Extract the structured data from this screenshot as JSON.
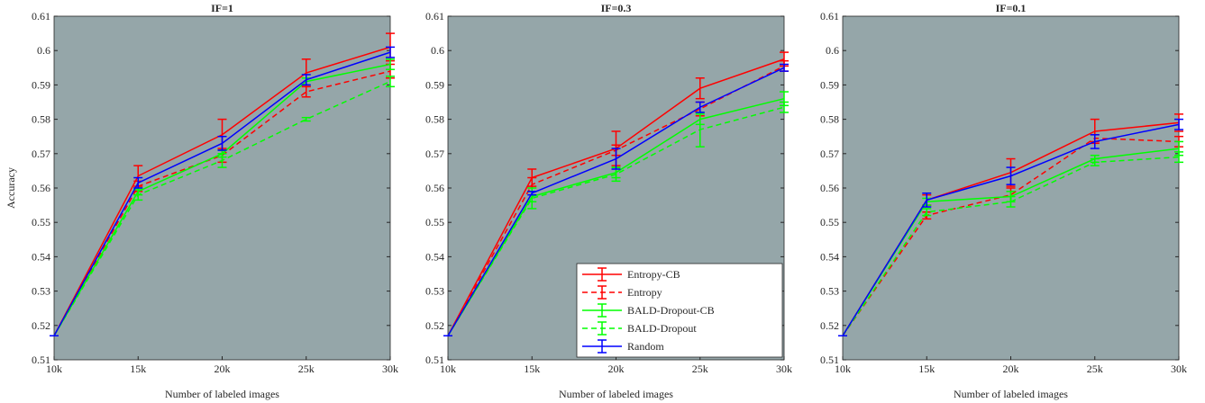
{
  "chart_data": [
    {
      "type": "line",
      "title": "IF=1",
      "xlabel": "Number of labeled images",
      "ylabel": "Accuracy",
      "categories": [
        "10k",
        "15k",
        "20k",
        "25k",
        "30k"
      ],
      "ylim": [
        0.51,
        0.61
      ],
      "yticks": [
        0.51,
        0.52,
        0.53,
        0.54,
        0.55,
        0.56,
        0.57,
        0.58,
        0.59,
        0.6,
        0.61
      ],
      "grid": false,
      "background": "#95a6a9",
      "series": [
        {
          "color": "#ff0000",
          "dash": false,
          "values": [
            0.517,
            0.5635,
            0.5755,
            0.5935,
            0.601
          ],
          "errors": [
            0,
            0.003,
            0.0045,
            0.004,
            0.004
          ]
        },
        {
          "color": "#ff0000",
          "dash": true,
          "values": [
            0.517,
            0.5605,
            0.5695,
            0.588,
            0.594
          ],
          "errors": [
            0,
            0.0015,
            0.002,
            0.0015,
            0.002
          ]
        },
        {
          "color": "#00ff00",
          "dash": false,
          "values": [
            0.517,
            0.559,
            0.57,
            0.591,
            0.596
          ],
          "errors": [
            0,
            0.001,
            0.001,
            0.001,
            0.0015
          ]
        },
        {
          "color": "#00ff00",
          "dash": true,
          "values": [
            0.517,
            0.558,
            0.568,
            0.58,
            0.591
          ],
          "errors": [
            0,
            0.0015,
            0.002,
            0.0005,
            0.0015
          ]
        },
        {
          "color": "#0000ff",
          "dash": false,
          "values": [
            0.517,
            0.5615,
            0.573,
            0.5915,
            0.5995
          ],
          "errors": [
            0,
            0.0015,
            0.002,
            0.0015,
            0.0015
          ]
        }
      ]
    },
    {
      "type": "line",
      "title": "IF=0.3",
      "xlabel": "Number of labeled images",
      "categories": [
        "10k",
        "15k",
        "20k",
        "25k",
        "30k"
      ],
      "ylim": [
        0.51,
        0.61
      ],
      "yticks": [
        0.51,
        0.52,
        0.53,
        0.54,
        0.55,
        0.56,
        0.57,
        0.58,
        0.59,
        0.6,
        0.61
      ],
      "grid": false,
      "background": "#95a6a9",
      "legend": "lower right",
      "series": [
        {
          "name": "Entropy-CB",
          "color": "#ff0000",
          "dash": false,
          "values": [
            0.517,
            0.563,
            0.5715,
            0.589,
            0.5975
          ],
          "errors": [
            0,
            0.0025,
            0.005,
            0.003,
            0.002
          ]
        },
        {
          "name": "Entropy",
          "color": "#ff0000",
          "dash": true,
          "values": [
            0.517,
            0.561,
            0.571,
            0.583,
            0.5955
          ],
          "errors": [
            0,
            0.002,
            0.0015,
            0.002,
            0.0015
          ]
        },
        {
          "name": "BALD-Dropout-CB",
          "color": "#00ff00",
          "dash": false,
          "values": [
            0.517,
            0.5575,
            0.5645,
            0.58,
            0.586
          ],
          "errors": [
            0,
            0.0015,
            0.0015,
            0.0015,
            0.002
          ]
        },
        {
          "name": "BALD-Dropout",
          "color": "#00ff00",
          "dash": true,
          "values": [
            0.517,
            0.557,
            0.564,
            0.577,
            0.5835
          ],
          "errors": [
            0,
            0.003,
            0.002,
            0.005,
            0.0015
          ]
        },
        {
          "name": "Random",
          "color": "#0000ff",
          "dash": false,
          "values": [
            0.517,
            0.5585,
            0.5685,
            0.5835,
            0.595
          ],
          "errors": [
            0,
            0.0005,
            0.003,
            0.0015,
            0.001
          ]
        }
      ]
    },
    {
      "type": "line",
      "title": "IF=0.1",
      "xlabel": "Number of labeled images",
      "categories": [
        "10k",
        "15k",
        "20k",
        "25k",
        "30k"
      ],
      "ylim": [
        0.51,
        0.61
      ],
      "yticks": [
        0.51,
        0.52,
        0.53,
        0.54,
        0.55,
        0.56,
        0.57,
        0.58,
        0.59,
        0.6,
        0.61
      ],
      "grid": false,
      "background": "#95a6a9",
      "series": [
        {
          "color": "#ff0000",
          "dash": false,
          "values": [
            0.517,
            0.5565,
            0.5645,
            0.5765,
            0.579
          ],
          "errors": [
            0,
            0.0015,
            0.004,
            0.0035,
            0.0025
          ]
        },
        {
          "color": "#ff0000",
          "dash": true,
          "values": [
            0.517,
            0.552,
            0.558,
            0.5745,
            0.5735
          ],
          "errors": [
            0,
            0.001,
            0.002,
            0.001,
            0.0015
          ]
        },
        {
          "color": "#00ff00",
          "dash": false,
          "values": [
            0.517,
            0.556,
            0.5575,
            0.5685,
            0.5715
          ],
          "errors": [
            0,
            0.001,
            0.0015,
            0.001,
            0.002
          ]
        },
        {
          "color": "#00ff00",
          "dash": true,
          "values": [
            0.517,
            0.553,
            0.556,
            0.5675,
            0.569
          ],
          "errors": [
            0,
            0.001,
            0.0015,
            0.001,
            0.0015
          ]
        },
        {
          "color": "#0000ff",
          "dash": false,
          "values": [
            0.517,
            0.5565,
            0.5635,
            0.5735,
            0.5785
          ],
          "errors": [
            0,
            0.002,
            0.0025,
            0.002,
            0.0015
          ]
        }
      ]
    }
  ]
}
